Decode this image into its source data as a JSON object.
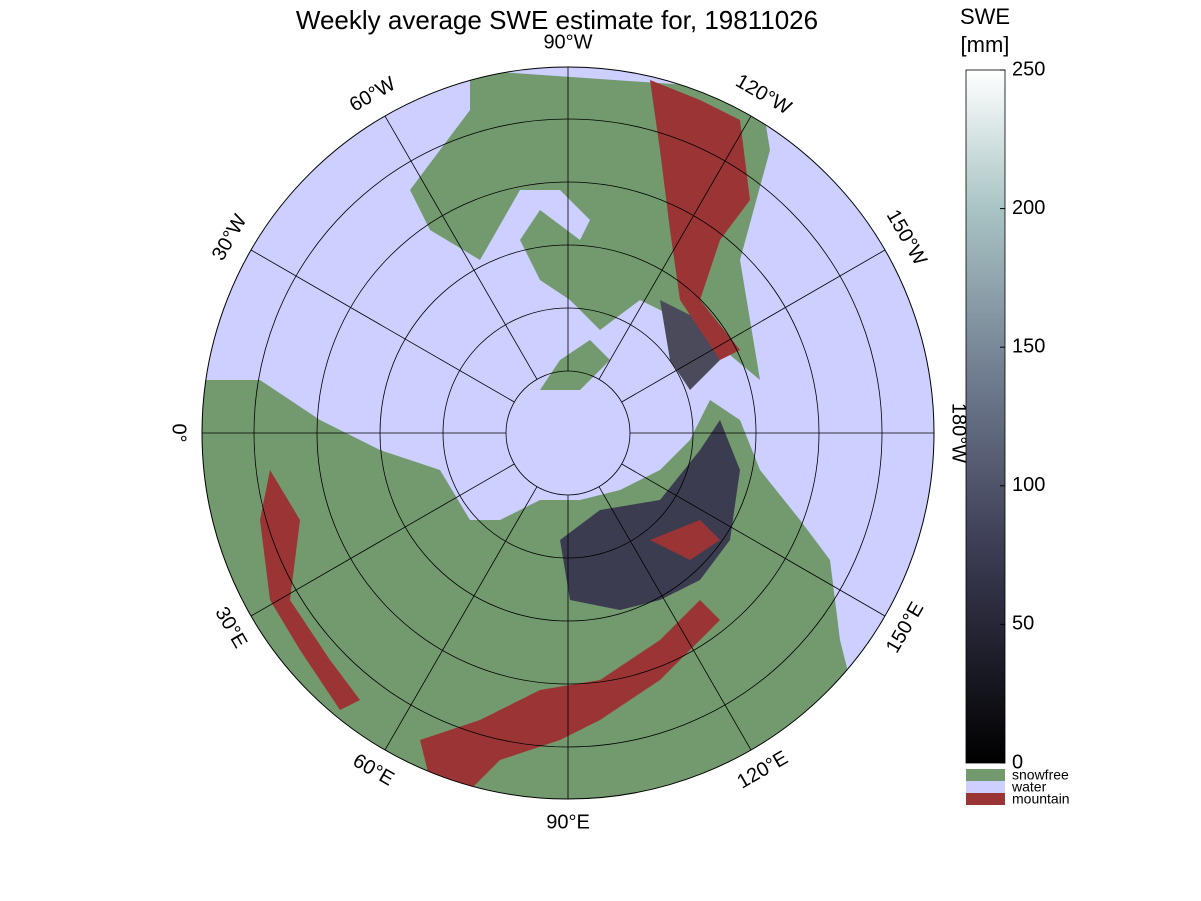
{
  "map": {
    "title": "Weekly average SWE estimate for, 19811026",
    "longitude_labels": [
      {
        "lon": -90,
        "label": "90°W"
      },
      {
        "lon": -120,
        "label": "120°W"
      },
      {
        "lon": -150,
        "label": "150°W"
      },
      {
        "lon": 180,
        "label": "180°W"
      },
      {
        "lon": 150,
        "label": "150°E"
      },
      {
        "lon": 120,
        "label": "120°E"
      },
      {
        "lon": 90,
        "label": "90°E"
      },
      {
        "lon": 60,
        "label": "60°E"
      },
      {
        "lon": 30,
        "label": "30°E"
      },
      {
        "lon": 0,
        "label": "0°"
      },
      {
        "lon": -30,
        "label": "30°W"
      },
      {
        "lon": -60,
        "label": "60°W"
      }
    ]
  },
  "colorbar": {
    "label": [
      "SWE",
      "[mm]"
    ],
    "lim": [
      0,
      250
    ],
    "ticks": [
      0,
      50,
      100,
      150,
      200,
      250
    ],
    "categories": [
      {
        "name": "snowfree",
        "color": "#739a6e"
      },
      {
        "name": "water",
        "color": "#cccfff"
      },
      {
        "name": "mountain",
        "color": "#9b3434"
      }
    ]
  }
}
